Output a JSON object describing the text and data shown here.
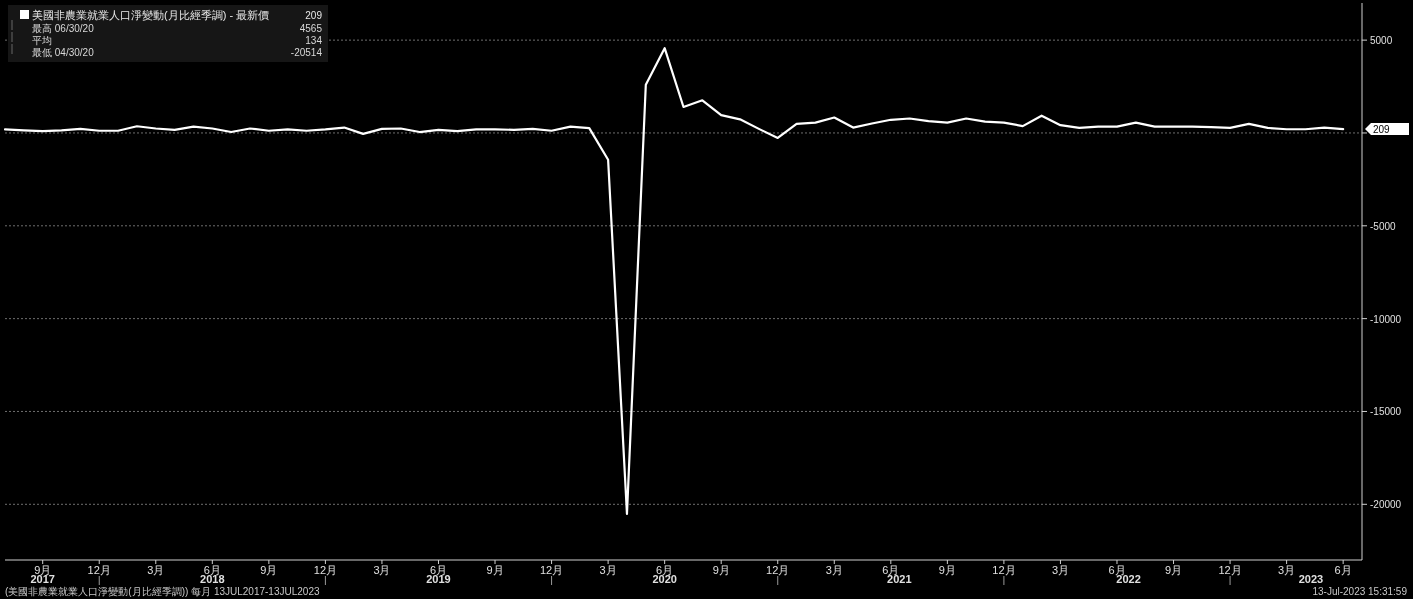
{
  "chart_data": {
    "type": "line",
    "x": [
      "2017-07",
      "2017-08",
      "2017-09",
      "2017-10",
      "2017-11",
      "2017-12",
      "2018-01",
      "2018-02",
      "2018-03",
      "2018-04",
      "2018-05",
      "2018-06",
      "2018-07",
      "2018-08",
      "2018-09",
      "2018-10",
      "2018-11",
      "2018-12",
      "2019-01",
      "2019-02",
      "2019-03",
      "2019-04",
      "2019-05",
      "2019-06",
      "2019-07",
      "2019-08",
      "2019-09",
      "2019-10",
      "2019-11",
      "2019-12",
      "2020-01",
      "2020-02",
      "2020-03",
      "2020-04",
      "2020-05",
      "2020-06",
      "2020-07",
      "2020-08",
      "2020-09",
      "2020-10",
      "2020-11",
      "2020-12",
      "2021-01",
      "2021-02",
      "2021-03",
      "2021-04",
      "2021-05",
      "2021-06",
      "2021-07",
      "2021-08",
      "2021-09",
      "2021-10",
      "2021-11",
      "2021-12",
      "2022-01",
      "2022-02",
      "2022-03",
      "2022-04",
      "2022-05",
      "2022-06",
      "2022-07",
      "2022-08",
      "2022-09",
      "2022-10",
      "2022-11",
      "2022-12",
      "2023-01",
      "2023-02",
      "2023-03",
      "2023-04",
      "2023-05",
      "2023-06"
    ],
    "series": [
      {
        "name": "美國非農業就業人口淨變動(月比經季調) - 最新價",
        "color": "#ffffff",
        "values": [
          190,
          140,
          100,
          140,
          220,
          120,
          120,
          360,
          240,
          170,
          340,
          240,
          50,
          240,
          120,
          190,
          120,
          190,
          290,
          -50,
          220,
          240,
          50,
          170,
          100,
          190,
          190,
          170,
          220,
          120,
          340,
          260,
          -1440,
          -20514,
          2600,
          4565,
          1400,
          1760,
          960,
          735,
          220,
          -270,
          490,
          560,
          830,
          290,
          510,
          710,
          780,
          640,
          560,
          780,
          610,
          560,
          370,
          930,
          420,
          270,
          340,
          340,
          560,
          340,
          340,
          340,
          320,
          270,
          490,
          270,
          200,
          200,
          290,
          209
        ]
      }
    ],
    "xlim": [
      "2017-07",
      "2023-07"
    ],
    "xticks": [
      {
        "value": "2017-09",
        "label": "9月"
      },
      {
        "value": "2017-12",
        "label": "12月"
      },
      {
        "value": "2018-03",
        "label": "3月"
      },
      {
        "value": "2018-06",
        "label": "6月"
      },
      {
        "value": "2018-09",
        "label": "9月"
      },
      {
        "value": "2018-12",
        "label": "12月"
      },
      {
        "value": "2019-03",
        "label": "3月"
      },
      {
        "value": "2019-06",
        "label": "6月"
      },
      {
        "value": "2019-09",
        "label": "9月"
      },
      {
        "value": "2019-12",
        "label": "12月"
      },
      {
        "value": "2020-03",
        "label": "3月"
      },
      {
        "value": "2020-06",
        "label": "6月"
      },
      {
        "value": "2020-09",
        "label": "9月"
      },
      {
        "value": "2020-12",
        "label": "12月"
      },
      {
        "value": "2021-03",
        "label": "3月"
      },
      {
        "value": "2021-06",
        "label": "6月"
      },
      {
        "value": "2021-09",
        "label": "9月"
      },
      {
        "value": "2021-12",
        "label": "12月"
      },
      {
        "value": "2022-03",
        "label": "3月"
      },
      {
        "value": "2022-06",
        "label": "6月"
      },
      {
        "value": "2022-09",
        "label": "9月"
      },
      {
        "value": "2022-12",
        "label": "12月"
      },
      {
        "value": "2023-03",
        "label": "3月"
      },
      {
        "value": "2023-06",
        "label": "6月"
      }
    ],
    "x2lim": [
      "2017-07",
      "2023-07"
    ],
    "x2ticks": [
      {
        "value": "2017-09",
        "label": "2017"
      },
      {
        "value": "2017-12",
        "label": null
      },
      {
        "value": "2018-06",
        "label": "2018"
      },
      {
        "value": "2018-12",
        "label": null
      },
      {
        "value": "2019-06",
        "label": "2019"
      },
      {
        "value": "2019-12",
        "label": null
      },
      {
        "value": "2020-06",
        "label": "2020"
      },
      {
        "value": "2020-12",
        "label": null
      },
      {
        "value": "2021-06-15",
        "label": "2021"
      },
      {
        "value": "2021-12",
        "label": null
      },
      {
        "value": "2022-06-20",
        "label": "2022"
      },
      {
        "value": "2022-12",
        "label": null
      },
      {
        "value": "2023-04-10",
        "label": "2023"
      }
    ],
    "ylim": [
      -23000,
      7000
    ],
    "yticks": [
      5000,
      {
        "value": 0,
        "label": null
      },
      -5000,
      -10000,
      -15000,
      -20000
    ],
    "grid": "y",
    "legend": "top left",
    "annotations": [
      "209",
      "最高 06/30/20",
      "4565",
      "平均",
      "134",
      "最低 04/30/20",
      "-20514",
      "(美國非農業就業人口淨變動(月比經季調))  每月 13JUL2017-13JUL2023",
      "13-Jul-2023 15:31:59",
      "209"
    ]
  }
}
